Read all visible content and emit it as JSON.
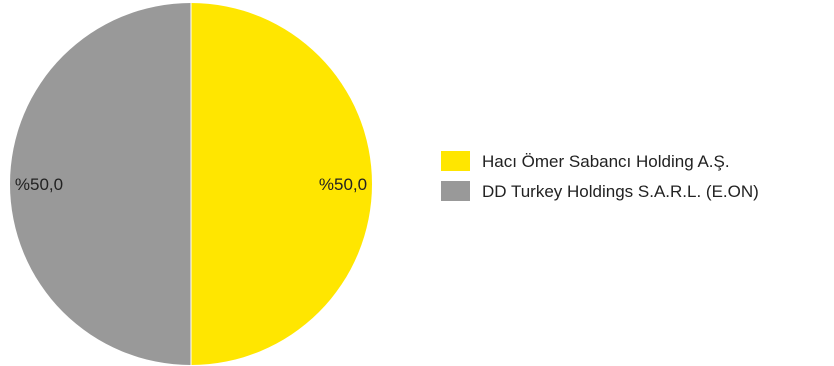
{
  "chart_data": {
    "type": "pie",
    "title": "",
    "start_angle_deg": 0,
    "direction": "clockwise",
    "legend_position": "right",
    "slices": [
      {
        "label": "Hacı Ömer Sabancı Holding A.Ş.",
        "value": 50.0,
        "display": "%50,0",
        "color": "#FFE600"
      },
      {
        "label": "DD Turkey Holdings S.A.R.L. (E.ON)",
        "value": 50.0,
        "display": "%50,0",
        "color": "#999999"
      }
    ]
  }
}
